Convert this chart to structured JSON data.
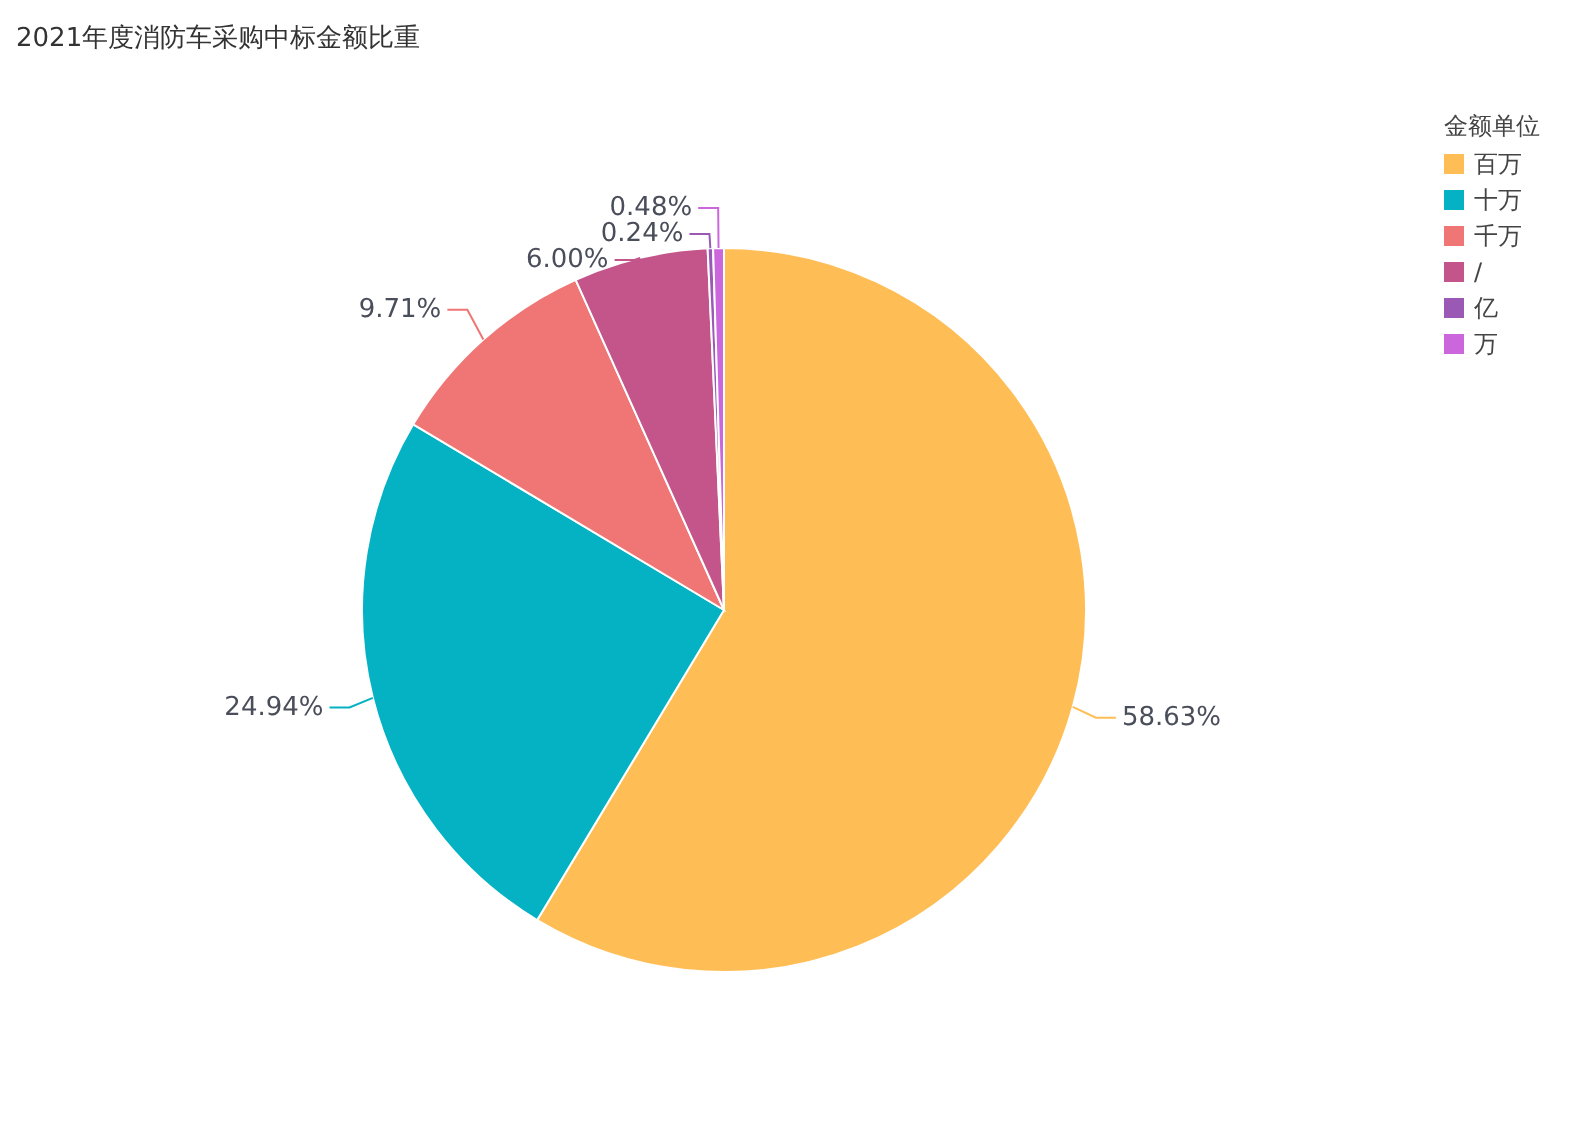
{
  "chart_data": {
    "type": "pie",
    "title": "2021年度消防车采购中标金额比重",
    "legend_title": "金额单位",
    "categories": [
      "百万",
      "十万",
      "千万",
      "/",
      "亿",
      "万"
    ],
    "values": [
      58.63,
      24.94,
      9.71,
      6.0,
      0.24,
      0.48
    ],
    "colors": [
      "#ffbe55",
      "#05b2c3",
      "#f07575",
      "#c4558a",
      "#9b59b6",
      "#cc66dd"
    ],
    "value_labels": [
      "58.63%",
      "24.94%",
      "9.71%",
      "6.00%",
      "0.24%",
      "0.48%"
    ],
    "legend": "top right"
  }
}
